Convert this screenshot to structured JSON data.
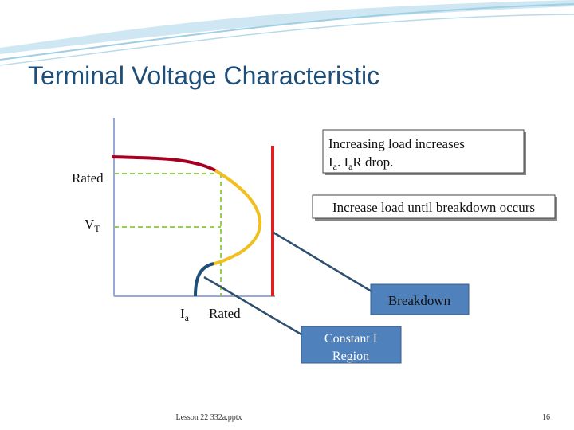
{
  "title": "Terminal Voltage Characteristic",
  "callouts": {
    "load_drop": {
      "line1": "Increasing load increases",
      "line2": [
        "I",
        "a",
        ". I",
        "a",
        "R drop."
      ]
    },
    "until_breakdown": "Increase load until breakdown occurs",
    "breakdown": "Breakdown",
    "constant_region": [
      "Constant I",
      "Region"
    ]
  },
  "labels": {
    "rated_y": "Rated",
    "vt": [
      "V",
      "T"
    ],
    "ia": [
      "I",
      "a"
    ],
    "rated_x": "Rated"
  },
  "footer": {
    "file": "Lesson 22 332a.pptx",
    "page": "16"
  }
}
